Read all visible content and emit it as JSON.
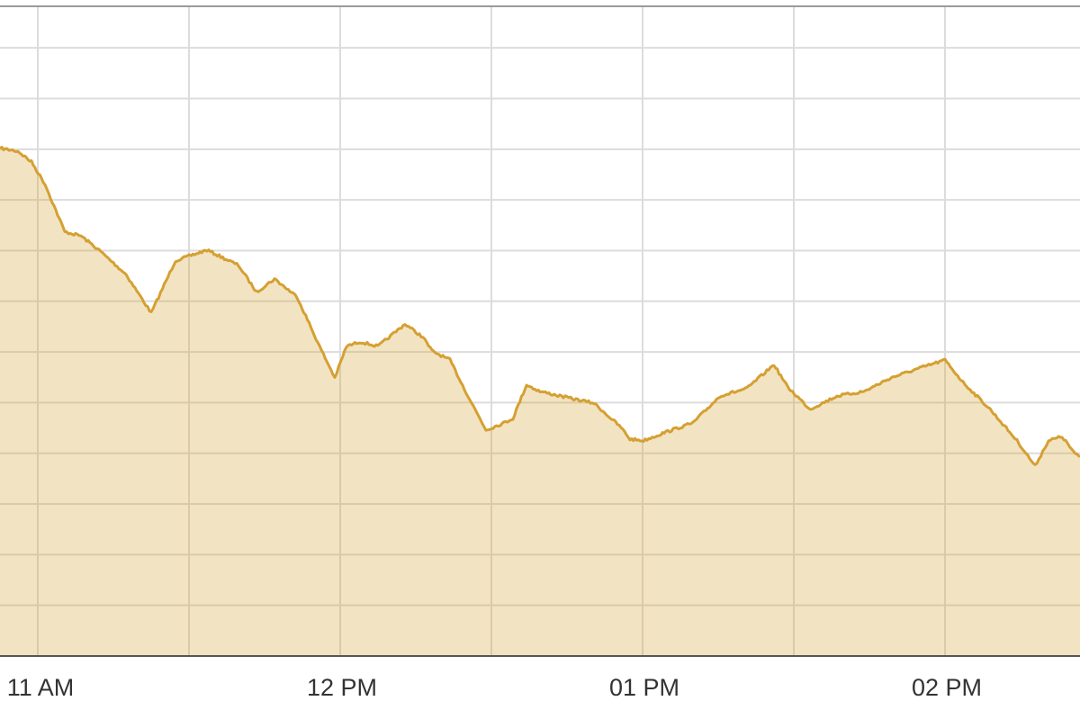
{
  "chart_data": {
    "type": "area",
    "title": "",
    "xlabel": "",
    "ylabel": "",
    "grid": true,
    "legend": "none",
    "x_ticks": [
      "11 AM",
      "12 PM",
      "01 PM",
      "02 PM"
    ],
    "xlim": [
      "10:52:30",
      "14:26:47"
    ],
    "ylim": [
      0,
      12.82
    ],
    "colors": {
      "line": "#D5A032",
      "fill": "#F2E4C3",
      "grid": "#DCDCDC",
      "grid_in_fill": "#DACBA6",
      "axis": "#555555"
    },
    "series": [
      {
        "x": [
          "10:52:30",
          "10:56:04",
          "10:58:45",
          "11:01:26",
          "11:05:21",
          "11:08:34",
          "11:12:09",
          "11:17:30",
          "11:22:30",
          "11:27:19",
          "11:33:34",
          "11:39:49",
          "11:43:24",
          "11:46:58",
          "11:51:26",
          "11:55:54",
          "11:58:56",
          "12:01:15",
          "12:03:56",
          "12:07:30",
          "12:12:51",
          "12:16:26",
          "12:18:13",
          "12:21:47",
          "12:25:21",
          "12:28:56",
          "12:32:30",
          "12:34:17",
          "12:36:58",
          "12:39:39",
          "12:45:00",
          "12:50:21",
          "12:55:43",
          "12:57:30",
          "13:00:11",
          "13:04:39",
          "13:10:00",
          "13:15:21",
          "13:20:43",
          "13:26:04",
          "13:28:45",
          "13:33:13",
          "13:38:34",
          "13:43:56",
          "13:49:17",
          "13:54:39",
          "14:00:00",
          "14:03:34",
          "14:08:56",
          "14:14:17",
          "14:17:52",
          "14:20:32",
          "14:23:13",
          "14:25:53",
          "14:26:47"
        ],
        "y": [
          10.02,
          9.96,
          9.75,
          9.31,
          8.37,
          8.29,
          8.01,
          7.53,
          6.77,
          7.8,
          8.01,
          7.71,
          7.18,
          7.44,
          7.09,
          6.11,
          5.49,
          6.11,
          6.2,
          6.11,
          6.55,
          6.29,
          6.02,
          5.84,
          5.13,
          4.46,
          4.6,
          4.69,
          5.35,
          5.22,
          5.1,
          4.99,
          4.51,
          4.28,
          4.25,
          4.42,
          4.6,
          5.13,
          5.28,
          5.75,
          5.31,
          4.87,
          5.13,
          5.22,
          5.49,
          5.67,
          5.84,
          5.4,
          4.87,
          4.25,
          3.75,
          4.25,
          4.33,
          3.98,
          3.93
        ]
      }
    ]
  }
}
